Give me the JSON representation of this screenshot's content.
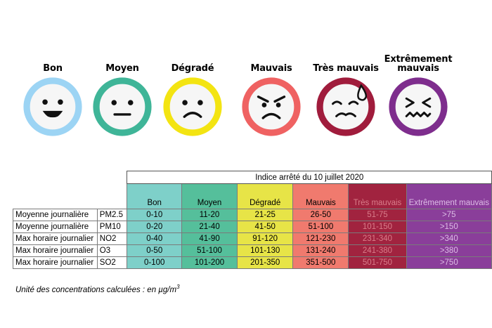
{
  "faces": [
    {
      "title": "Bon",
      "ring": "#9cd4f4",
      "face": "#f6f6f6",
      "icon": "big-smile-face-icon"
    },
    {
      "title": "Moyen",
      "ring": "#3fb598",
      "face": "#f6f6f6",
      "icon": "neutral-face-icon"
    },
    {
      "title": "Dégradé",
      "ring": "#f3e412",
      "face": "#f6f6f6",
      "icon": "frowning-face-icon"
    },
    {
      "title": "Mauvais",
      "ring": "#ef6262",
      "face": "#f6f6f6",
      "icon": "angry-face-icon"
    },
    {
      "title": "Très mauvais",
      "ring": "#a01c3c",
      "face": "#f6f6f6",
      "icon": "sweating-face-icon"
    },
    {
      "title": "Extrêmement mauvais",
      "ring": "#7e2d8d",
      "face": "#f6f6f6",
      "icon": "grimacing-face-icon"
    }
  ],
  "table": {
    "date_header": "Indice arrêté du 10 juillet 2020",
    "levels": [
      "Bon",
      "Moyen",
      "Dégradé",
      "Mauvais",
      "Très mauvais",
      "Extrêmement mauvais"
    ],
    "rows": [
      {
        "label": "Moyenne journalière",
        "pollutant": "PM2.5",
        "values": [
          "0-10",
          "11-20",
          "21-25",
          "26-50",
          "51-75",
          ">75"
        ]
      },
      {
        "label": "Moyenne journalière",
        "pollutant": "PM10",
        "values": [
          "0-20",
          "21-40",
          "41-50",
          "51-100",
          "101-150",
          ">150"
        ]
      },
      {
        "label": "Max horaire journalier",
        "pollutant": "NO2",
        "values": [
          "0-40",
          "41-90",
          "91-120",
          "121-230",
          "231-340",
          ">340"
        ]
      },
      {
        "label": "Max horaire journalier",
        "pollutant": "O3",
        "values": [
          "0-50",
          "51-100",
          "101-130",
          "131-240",
          "241-380",
          ">380"
        ]
      },
      {
        "label": "Max horaire journalier",
        "pollutant": "SO2",
        "values": [
          "0-100",
          "101-200",
          "201-350",
          "351-500",
          "501-750",
          ">750"
        ]
      }
    ]
  },
  "note": {
    "text": "Unité des concentrations calculées : en µg/m",
    "sup": "3"
  }
}
